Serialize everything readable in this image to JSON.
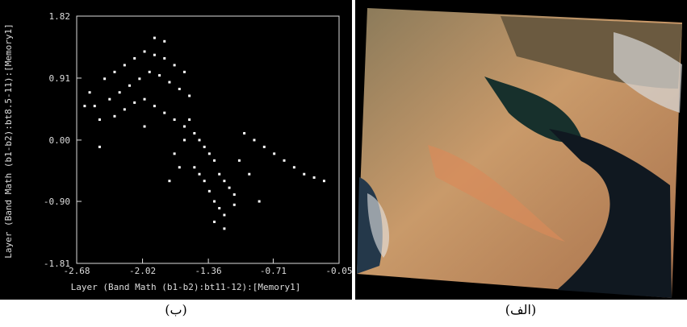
{
  "chart_data": {
    "type": "scatter",
    "xlabel": "Layer (Band Math (b1-b2):bt11-12):[Memory1]",
    "ylabel": "Layer (Band Math (b1-b2):bt8.5-11):[Memory1]",
    "xlim": [
      -2.68,
      -0.05
    ],
    "xticks": [
      -2.68,
      -2.02,
      -1.36,
      -0.71,
      -0.05
    ],
    "ylim": [
      -1.81,
      1.82
    ],
    "yticks": [
      -1.81,
      {
        "value": -0.9,
        "label": "-0.90"
      },
      {
        "value": 0,
        "label": "0.00"
      },
      0.91,
      1.82
    ],
    "color": "#ffffff",
    "x": [
      -2.4,
      -2.3,
      -2.2,
      -2.1,
      -2.0,
      -1.9,
      -1.8,
      -1.7,
      -1.6,
      -2.35,
      -2.25,
      -2.15,
      -2.05,
      -1.95,
      -1.85,
      -1.75,
      -1.65,
      -1.55,
      -2.5,
      -2.45,
      -2.3,
      -2.2,
      -2.1,
      -2.0,
      -1.9,
      -1.8,
      -1.7,
      -1.6,
      -1.5,
      -1.45,
      -1.4,
      -1.35,
      -1.3,
      -1.25,
      -1.2,
      -1.15,
      -1.1,
      -1.5,
      -1.45,
      -1.4,
      -1.35,
      -1.3,
      -1.25,
      -1.2,
      -1.55,
      -1.6,
      -1.7,
      -1.65,
      -1.0,
      -0.9,
      -0.8,
      -0.7,
      -0.6,
      -0.5,
      -0.4,
      -0.3,
      -0.2,
      -2.55,
      -2.6,
      -2.45,
      -1.05,
      -0.95,
      -0.85,
      -1.9,
      -1.8,
      -2.0,
      -1.75,
      -1.3,
      -1.2,
      -1.1
    ],
    "y": [
      0.9,
      1.0,
      1.1,
      1.2,
      1.3,
      1.25,
      1.2,
      1.1,
      1.0,
      0.6,
      0.7,
      0.8,
      0.9,
      1.0,
      0.95,
      0.85,
      0.75,
      0.65,
      0.5,
      0.3,
      0.35,
      0.45,
      0.55,
      0.6,
      0.5,
      0.4,
      0.3,
      0.2,
      0.1,
      0.0,
      -0.1,
      -0.2,
      -0.3,
      -0.5,
      -0.6,
      -0.7,
      -0.8,
      -0.4,
      -0.5,
      -0.6,
      -0.75,
      -0.9,
      -1.0,
      -1.1,
      0.3,
      0.0,
      -0.2,
      -0.4,
      0.1,
      0.0,
      -0.1,
      -0.2,
      -0.3,
      -0.4,
      -0.5,
      -0.55,
      -0.6,
      0.7,
      0.5,
      -0.1,
      -0.3,
      -0.5,
      -0.9,
      1.5,
      1.45,
      0.2,
      -0.6,
      -1.2,
      -1.3,
      -0.95
    ],
    "caption": "(ب)"
  },
  "image": {
    "caption": "(الف)"
  }
}
